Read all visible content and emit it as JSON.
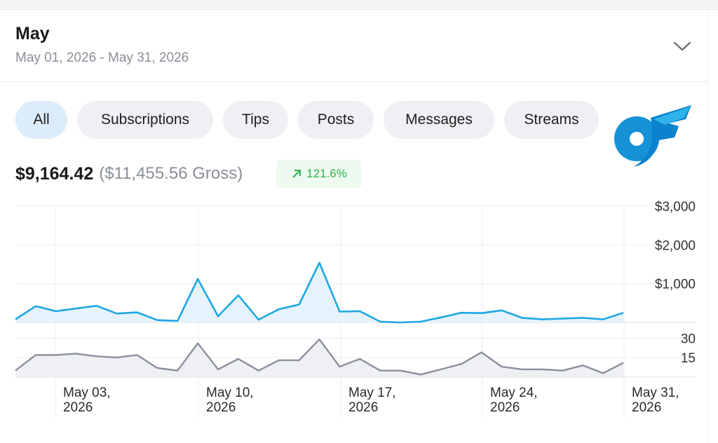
{
  "header": {
    "title": "May",
    "date_range": "May 01, 2026 - May 31, 2026"
  },
  "filters": {
    "chips": [
      {
        "label": "All",
        "active": true
      },
      {
        "label": "Subscriptions",
        "active": false
      },
      {
        "label": "Tips",
        "active": false
      },
      {
        "label": "Posts",
        "active": false
      },
      {
        "label": "Messages",
        "active": false
      },
      {
        "label": "Streams",
        "active": false
      }
    ]
  },
  "summary": {
    "net": "$9,164.42",
    "gross": "($11,455.56 Gross)",
    "change": "121.6%"
  },
  "colors": {
    "accent_blue": "#1ea7e1",
    "count_gray": "#8c8f9e",
    "positive_green": "#2fb24c"
  },
  "chart_data": [
    {
      "type": "area",
      "title": "",
      "x": [
        "May 01",
        "May 02",
        "May 03",
        "May 04",
        "May 05",
        "May 06",
        "May 07",
        "May 08",
        "May 09",
        "May 10",
        "May 11",
        "May 12",
        "May 13",
        "May 14",
        "May 15",
        "May 16",
        "May 17",
        "May 18",
        "May 19",
        "May 20",
        "May 21",
        "May 22",
        "May 23",
        "May 24",
        "May 25",
        "May 26",
        "May 27",
        "May 28",
        "May 29",
        "May 30",
        "May 31"
      ],
      "values": [
        80,
        420,
        290,
        360,
        430,
        230,
        260,
        60,
        40,
        1120,
        160,
        700,
        70,
        340,
        460,
        1540,
        280,
        290,
        20,
        0,
        20,
        130,
        250,
        240,
        310,
        120,
        80,
        100,
        120,
        80,
        250
      ],
      "x_tick_labels": [
        "May 03, 2026",
        "May 10, 2026",
        "May 17, 2026",
        "May 24, 2026",
        "May 31, 2026"
      ],
      "y_tick_labels": [
        "$3,000",
        "$2,000",
        "$1,000"
      ],
      "ylim": [
        0,
        3000
      ],
      "grid": true
    },
    {
      "type": "area",
      "title": "",
      "x": [
        "May 01",
        "May 02",
        "May 03",
        "May 04",
        "May 05",
        "May 06",
        "May 07",
        "May 08",
        "May 09",
        "May 10",
        "May 11",
        "May 12",
        "May 13",
        "May 14",
        "May 15",
        "May 16",
        "May 17",
        "May 18",
        "May 19",
        "May 20",
        "May 21",
        "May 22",
        "May 23",
        "May 24",
        "May 25",
        "May 26",
        "May 27",
        "May 28",
        "May 29",
        "May 30",
        "May 31"
      ],
      "values": [
        5,
        17,
        17,
        18,
        16,
        15,
        17,
        7,
        5,
        26,
        6,
        14,
        5,
        13,
        13,
        29,
        8,
        14,
        5,
        5,
        2,
        6,
        10,
        19,
        8,
        6,
        6,
        5,
        9,
        3,
        11
      ],
      "y_tick_labels": [
        "30",
        "15"
      ],
      "ylim": [
        0,
        35
      ],
      "grid": true
    }
  ]
}
